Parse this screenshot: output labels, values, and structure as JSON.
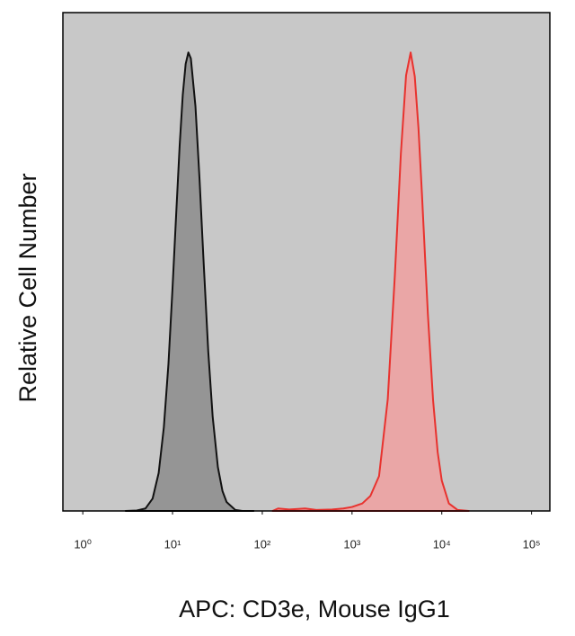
{
  "chart_data": {
    "type": "histogram-overlay",
    "x_label": "APC: CD3e, Mouse IgG1",
    "y_label": "Relative Cell Number",
    "x_scale": "log",
    "xlim": [
      0.6,
      160000
    ],
    "ylim": [
      0,
      100
    ],
    "xticks": [
      {
        "value": 1,
        "label": "10⁰"
      },
      {
        "value": 10,
        "label": "10¹"
      },
      {
        "value": 100,
        "label": "10²"
      },
      {
        "value": 1000,
        "label": "10³"
      },
      {
        "value": 10000,
        "label": "10⁴"
      },
      {
        "value": 100000,
        "label": "10⁵"
      }
    ],
    "background": "#c8c8c8",
    "series": [
      {
        "color": "#111111",
        "fill_color": "#8c8c8c",
        "x": [
          3,
          4,
          5,
          6,
          7,
          8,
          9,
          10,
          11,
          12,
          13,
          14,
          15,
          16,
          18,
          20,
          22,
          25,
          28,
          32,
          36,
          40,
          50,
          60,
          80
        ],
        "values": [
          0,
          0.1,
          0.5,
          2.5,
          7.6,
          16.8,
          29.5,
          44.8,
          59.9,
          73.3,
          83.5,
          89.7,
          92,
          90.8,
          81.2,
          66.5,
          51.3,
          32,
          18.9,
          8.8,
          4,
          1.8,
          0.2,
          0,
          0
        ]
      },
      {
        "color": "#e8322e",
        "fill_color": "#f0a0a0",
        "x": [
          130,
          150,
          200,
          300,
          400,
          600,
          800,
          1000,
          1300,
          1600,
          2000,
          2500,
          3000,
          3500,
          4000,
          4500,
          5000,
          5500,
          6000,
          7000,
          8000,
          9000,
          10000,
          12000,
          15000,
          20000
        ],
        "values": [
          0,
          0.5,
          0.3,
          0.5,
          0.2,
          0.3,
          0.5,
          0.8,
          1.5,
          3,
          7,
          22.4,
          47.3,
          71.7,
          87.4,
          92,
          87.2,
          76.8,
          63.9,
          39.5,
          22.2,
          11.8,
          6.1,
          1.5,
          0.2,
          0
        ]
      }
    ]
  }
}
